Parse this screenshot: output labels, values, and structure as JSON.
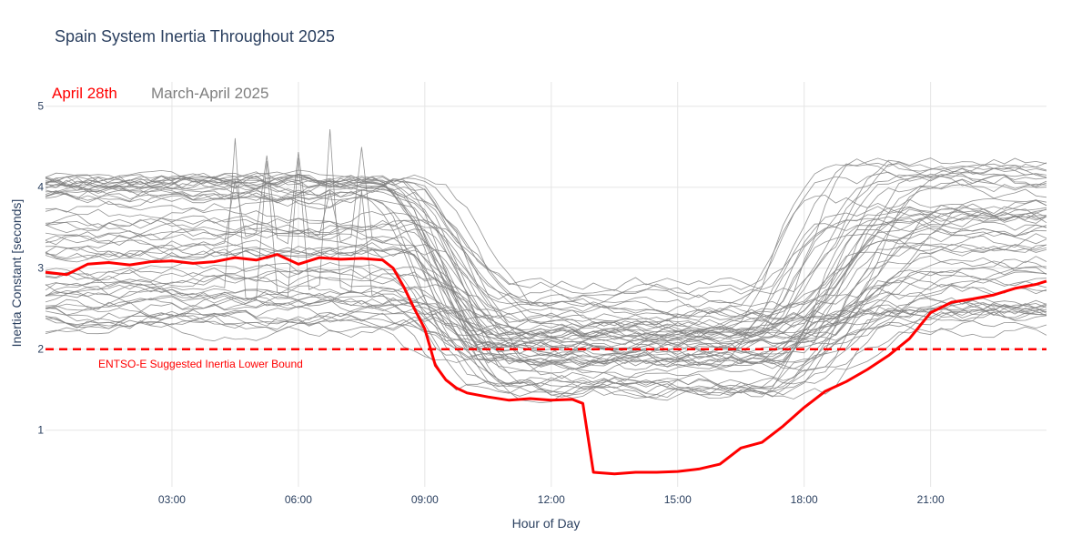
{
  "chart_data": {
    "type": "line",
    "title": "Spain System Inertia Throughout 2025",
    "xlabel": "Hour of Day",
    "ylabel": "Inertia Constant [seconds]",
    "xlim": [
      0,
      23.75
    ],
    "ylim": [
      0.3,
      5.3
    ],
    "grid": true,
    "legend_position": "top-left",
    "x_ticks": [
      {
        "value": 3,
        "label": "03:00"
      },
      {
        "value": 6,
        "label": "06:00"
      },
      {
        "value": 9,
        "label": "09:00"
      },
      {
        "value": 12,
        "label": "12:00"
      },
      {
        "value": 15,
        "label": "15:00"
      },
      {
        "value": 18,
        "label": "18:00"
      },
      {
        "value": 21,
        "label": "21:00"
      }
    ],
    "y_ticks": [
      {
        "value": 1,
        "label": "1"
      },
      {
        "value": 2,
        "label": "2"
      },
      {
        "value": 3,
        "label": "3"
      },
      {
        "value": 4,
        "label": "4"
      },
      {
        "value": 5,
        "label": "5"
      }
    ],
    "legend": [
      {
        "label": "April 28th",
        "color": "#ff0000"
      },
      {
        "label": "March-April 2025",
        "color": "#7f7f7f"
      }
    ],
    "reference_line": {
      "y": 2.0,
      "label": "ENTSO-E Suggested Inertia Lower Bound",
      "color": "#ff0000",
      "style": "dashed"
    },
    "highlight_series": {
      "name": "April 28th",
      "color": "#ff0000",
      "x": [
        0,
        0.5,
        1,
        1.5,
        2,
        2.5,
        3,
        3.5,
        4,
        4.5,
        5,
        5.5,
        6,
        6.5,
        7,
        7.5,
        8,
        8.25,
        8.5,
        8.75,
        9,
        9.25,
        9.5,
        9.75,
        10,
        10.5,
        11,
        11.5,
        12,
        12.5,
        12.75,
        13,
        13.5,
        14,
        14.5,
        15,
        15.5,
        16,
        16.5,
        17,
        17.5,
        18,
        18.5,
        19,
        19.5,
        20,
        20.5,
        21,
        21.5,
        22,
        22.5,
        23,
        23.5,
        23.75
      ],
      "y": [
        2.95,
        2.92,
        3.05,
        3.07,
        3.04,
        3.08,
        3.09,
        3.06,
        3.08,
        3.13,
        3.1,
        3.17,
        3.05,
        3.13,
        3.11,
        3.12,
        3.1,
        3.0,
        2.77,
        2.5,
        2.25,
        1.8,
        1.62,
        1.52,
        1.46,
        1.41,
        1.37,
        1.39,
        1.37,
        1.38,
        1.33,
        0.48,
        0.46,
        0.48,
        0.48,
        0.49,
        0.52,
        0.58,
        0.78,
        0.85,
        1.05,
        1.28,
        1.48,
        1.6,
        1.75,
        1.92,
        2.13,
        2.45,
        2.58,
        2.62,
        2.67,
        2.75,
        2.8,
        2.84
      ]
    },
    "background_series": {
      "name": "March-April 2025",
      "color": "#7f7f7f",
      "count": 60,
      "y_range_approx": [
        1.05,
        5.0
      ]
    }
  }
}
